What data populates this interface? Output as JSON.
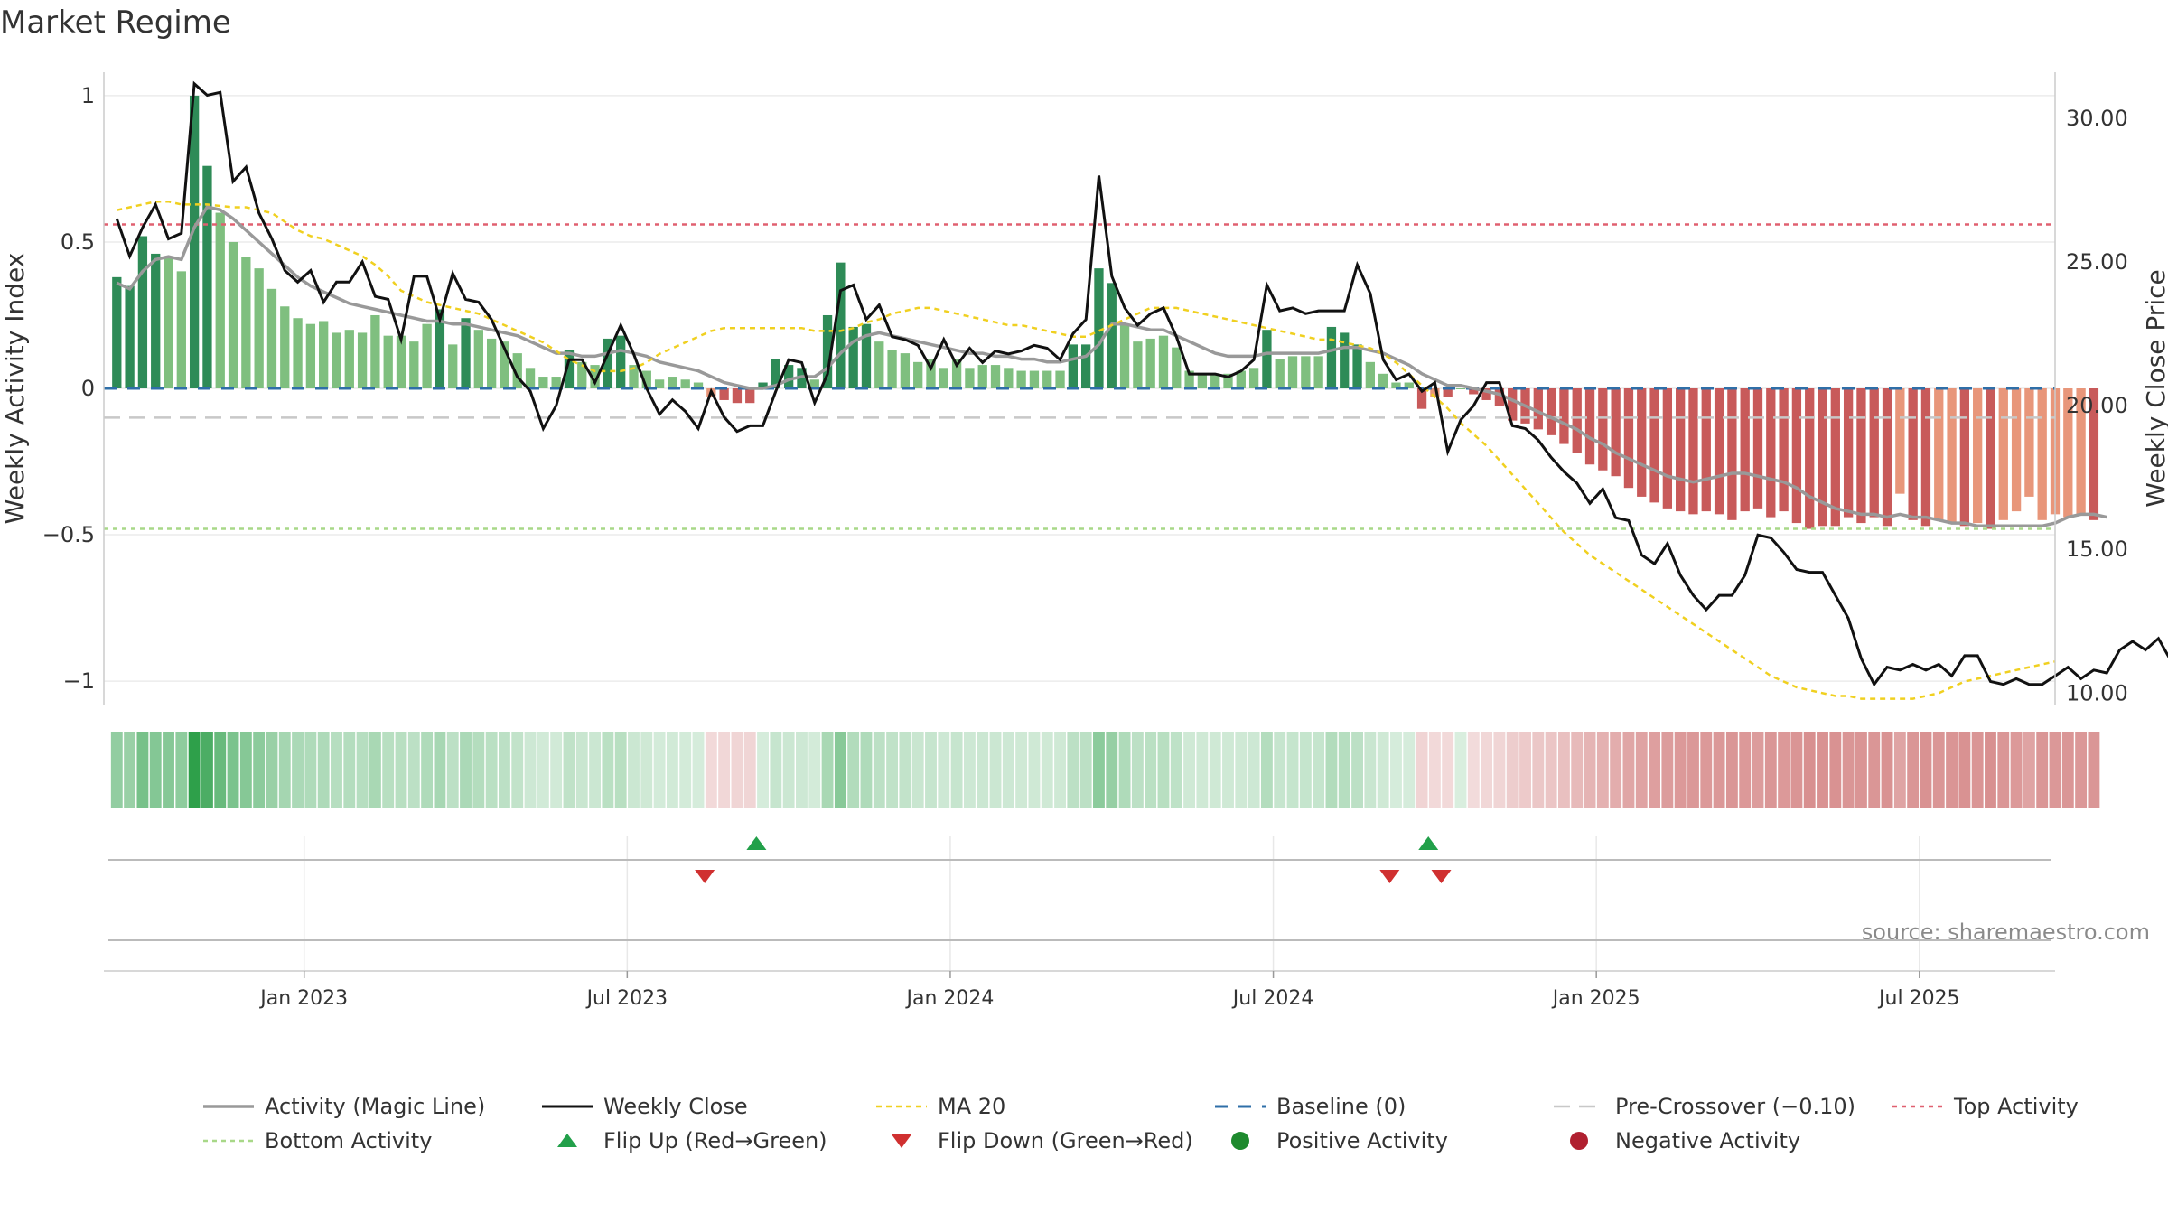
{
  "chart_data": {
    "type": "bar",
    "title": "Market Regime",
    "source": "source: sharemaestro.com",
    "ylabel_left": "Weekly Activity Index",
    "ylabel_right": "Weekly Close Price",
    "yticks_left": [
      {
        "value": 1,
        "label": "1"
      },
      {
        "value": 0.5,
        "label": "0.5"
      },
      {
        "value": 0,
        "label": "0"
      },
      {
        "value": -0.5,
        "label": "−0.5"
      },
      {
        "value": -1,
        "label": "−1"
      }
    ],
    "yticks_right": [
      {
        "value": 30,
        "label": "30.00"
      },
      {
        "value": 25,
        "label": "25.00"
      },
      {
        "value": 20,
        "label": "20.00"
      },
      {
        "value": 15,
        "label": "15.00"
      },
      {
        "value": 10,
        "label": "10.00"
      }
    ],
    "ylim_left": [
      -1.08,
      1.08
    ],
    "ylim_right": [
      9.6,
      31.6
    ],
    "xlim_weeks": [
      -1,
      150
    ],
    "xticks": [
      {
        "week": 14.5,
        "label": "Jan 2023"
      },
      {
        "week": 39.5,
        "label": "Jul 2023"
      },
      {
        "week": 64.5,
        "label": "Jan 2024"
      },
      {
        "week": 89.5,
        "label": "Jul 2024"
      },
      {
        "week": 114.5,
        "label": "Jan 2025"
      },
      {
        "week": 139.5,
        "label": "Jul 2025"
      }
    ],
    "reference_lines": {
      "baseline": 0,
      "pre_crossover": -0.1,
      "top_activity": 0.56,
      "bottom_activity": -0.48
    },
    "activity": [
      0.38,
      0.35,
      0.52,
      0.46,
      0.45,
      0.4,
      1.0,
      0.76,
      0.6,
      0.5,
      0.45,
      0.41,
      0.34,
      0.28,
      0.24,
      0.22,
      0.23,
      0.19,
      0.2,
      0.19,
      0.25,
      0.18,
      0.18,
      0.16,
      0.22,
      0.27,
      0.15,
      0.24,
      0.2,
      0.17,
      0.16,
      0.12,
      0.07,
      0.04,
      0.04,
      0.13,
      0.09,
      0.08,
      0.17,
      0.18,
      0.08,
      0.06,
      0.03,
      0.04,
      0.03,
      0.02,
      -0.03,
      -0.04,
      -0.05,
      -0.05,
      0.02,
      0.1,
      0.08,
      0.07,
      0.03,
      0.25,
      0.43,
      0.21,
      0.22,
      0.16,
      0.13,
      0.12,
      0.09,
      0.1,
      0.07,
      0.1,
      0.07,
      0.08,
      0.08,
      0.07,
      0.06,
      0.06,
      0.06,
      0.06,
      0.15,
      0.15,
      0.41,
      0.36,
      0.22,
      0.16,
      0.17,
      0.18,
      0.14,
      0.06,
      0.05,
      0.05,
      0.05,
      0.06,
      0.07,
      0.2,
      0.1,
      0.11,
      0.11,
      0.11,
      0.21,
      0.19,
      0.15,
      0.09,
      0.05,
      0.02,
      0.02,
      -0.07,
      -0.03,
      -0.03,
      0.0,
      -0.02,
      -0.04,
      -0.06,
      -0.11,
      -0.12,
      -0.14,
      -0.16,
      -0.19,
      -0.22,
      -0.26,
      -0.28,
      -0.3,
      -0.34,
      -0.37,
      -0.39,
      -0.41,
      -0.42,
      -0.43,
      -0.42,
      -0.43,
      -0.45,
      -0.42,
      -0.41,
      -0.44,
      -0.42,
      -0.46,
      -0.48,
      -0.47,
      -0.47,
      -0.44,
      -0.46,
      -0.44,
      -0.47,
      -0.36,
      -0.45,
      -0.47,
      -0.45,
      -0.46,
      -0.47,
      -0.46,
      -0.48,
      -0.45,
      -0.42,
      -0.37,
      -0.45,
      -0.43,
      -0.44,
      -0.43,
      -0.45
    ],
    "magic_line": [
      0.36,
      0.34,
      0.4,
      0.44,
      0.45,
      0.44,
      0.55,
      0.62,
      0.61,
      0.58,
      0.54,
      0.5,
      0.46,
      0.42,
      0.38,
      0.35,
      0.33,
      0.31,
      0.29,
      0.28,
      0.27,
      0.26,
      0.25,
      0.24,
      0.23,
      0.23,
      0.22,
      0.22,
      0.21,
      0.2,
      0.19,
      0.18,
      0.16,
      0.14,
      0.12,
      0.12,
      0.11,
      0.11,
      0.12,
      0.13,
      0.12,
      0.11,
      0.09,
      0.08,
      0.07,
      0.06,
      0.04,
      0.02,
      0.01,
      0.0,
      0.0,
      0.01,
      0.03,
      0.04,
      0.04,
      0.07,
      0.12,
      0.16,
      0.18,
      0.19,
      0.18,
      0.17,
      0.16,
      0.15,
      0.14,
      0.13,
      0.12,
      0.12,
      0.11,
      0.11,
      0.1,
      0.1,
      0.09,
      0.09,
      0.1,
      0.11,
      0.15,
      0.22,
      0.22,
      0.21,
      0.2,
      0.2,
      0.18,
      0.16,
      0.14,
      0.12,
      0.11,
      0.11,
      0.11,
      0.12,
      0.12,
      0.12,
      0.12,
      0.12,
      0.13,
      0.14,
      0.14,
      0.13,
      0.12,
      0.1,
      0.08,
      0.05,
      0.03,
      0.01,
      0.01,
      0.0,
      -0.01,
      -0.02,
      -0.04,
      -0.06,
      -0.08,
      -0.1,
      -0.12,
      -0.14,
      -0.17,
      -0.19,
      -0.22,
      -0.24,
      -0.26,
      -0.28,
      -0.3,
      -0.31,
      -0.32,
      -0.31,
      -0.3,
      -0.29,
      -0.29,
      -0.3,
      -0.31,
      -0.32,
      -0.34,
      -0.37,
      -0.39,
      -0.41,
      -0.42,
      -0.43,
      -0.43,
      -0.44,
      -0.43,
      -0.44,
      -0.44,
      -0.45,
      -0.46,
      -0.46,
      -0.47,
      -0.47,
      -0.47,
      -0.47,
      -0.47,
      -0.47,
      -0.46,
      -0.44,
      -0.43,
      -0.43,
      -0.44
    ],
    "weekly_close": [
      26.5,
      25.2,
      26.2,
      27.0,
      25.8,
      26.0,
      31.2,
      30.8,
      30.9,
      27.8,
      28.3,
      26.7,
      25.8,
      24.7,
      24.3,
      24.7,
      23.6,
      24.3,
      24.3,
      25.0,
      23.8,
      23.7,
      22.3,
      24.5,
      24.5,
      23.0,
      24.6,
      23.7,
      23.6,
      23.0,
      22.0,
      21.0,
      20.5,
      19.2,
      20.0,
      21.6,
      21.6,
      20.8,
      21.8,
      22.8,
      21.8,
      20.6,
      19.7,
      20.2,
      19.8,
      19.2,
      20.5,
      19.6,
      19.1,
      19.3,
      19.3,
      20.5,
      21.6,
      21.5,
      20.1,
      21.1,
      24.0,
      24.2,
      23.0,
      23.5,
      22.4,
      22.3,
      22.1,
      21.3,
      22.3,
      21.4,
      22.0,
      21.5,
      21.9,
      21.8,
      21.9,
      22.1,
      22.0,
      21.6,
      22.5,
      23.0,
      28.0,
      24.5,
      23.4,
      22.8,
      23.2,
      23.4,
      22.4,
      21.1,
      21.1,
      21.1,
      21.0,
      21.2,
      21.6,
      24.2,
      23.3,
      23.4,
      23.2,
      23.3,
      23.3,
      23.3,
      24.9,
      23.9,
      21.6,
      20.9,
      21.1,
      20.5,
      20.8,
      18.4,
      19.5,
      20.0,
      20.8,
      20.8,
      19.3,
      19.2,
      18.8,
      18.2,
      17.7,
      17.3,
      16.6,
      17.1,
      16.1,
      16.0,
      14.8,
      14.5,
      15.2,
      14.1,
      13.4,
      12.9,
      13.4,
      13.4,
      14.1,
      15.5,
      15.4,
      14.9,
      14.3,
      14.2,
      14.2,
      13.4,
      12.6,
      11.2,
      10.3,
      10.9,
      10.8,
      11.0,
      10.8,
      11.0,
      10.6,
      11.3,
      11.3,
      10.4,
      10.3,
      10.5,
      10.3,
      10.3,
      10.6,
      10.9,
      10.5,
      10.8,
      10.7,
      11.5,
      11.8,
      11.5,
      11.9,
      11.1
    ],
    "ma20": [
      26.8,
      26.9,
      27.0,
      27.1,
      27.1,
      27.0,
      27.0,
      27.0,
      26.95,
      26.9,
      26.9,
      26.8,
      26.7,
      26.4,
      26.1,
      25.9,
      25.8,
      25.6,
      25.4,
      25.2,
      24.9,
      24.5,
      24.0,
      23.8,
      23.6,
      23.5,
      23.4,
      23.3,
      23.2,
      23.0,
      22.8,
      22.6,
      22.4,
      22.2,
      21.9,
      21.6,
      21.4,
      21.2,
      21.2,
      21.2,
      21.3,
      21.5,
      21.8,
      22.0,
      22.2,
      22.4,
      22.6,
      22.7,
      22.7,
      22.7,
      22.7,
      22.7,
      22.7,
      22.7,
      22.6,
      22.6,
      22.6,
      22.7,
      22.9,
      23.0,
      23.2,
      23.3,
      23.4,
      23.4,
      23.3,
      23.2,
      23.1,
      23.0,
      22.9,
      22.8,
      22.8,
      22.7,
      22.6,
      22.5,
      22.4,
      22.4,
      22.6,
      22.8,
      23.0,
      23.2,
      23.4,
      23.4,
      23.4,
      23.3,
      23.2,
      23.1,
      23.0,
      22.9,
      22.8,
      22.7,
      22.6,
      22.5,
      22.4,
      22.3,
      22.3,
      22.2,
      22.1,
      22.0,
      21.8,
      21.5,
      21.1,
      20.7,
      20.3,
      19.9,
      19.4,
      19.0,
      18.6,
      18.1,
      17.6,
      17.1,
      16.6,
      16.1,
      15.6,
      15.2,
      14.8,
      14.5,
      14.2,
      13.9,
      13.6,
      13.3,
      13.0,
      12.7,
      12.4,
      12.1,
      11.8,
      11.5,
      11.2,
      10.9,
      10.6,
      10.4,
      10.2,
      10.1,
      10.0,
      9.9,
      9.9,
      9.8,
      9.8,
      9.8,
      9.8,
      9.8,
      9.9,
      10.0,
      10.2,
      10.4,
      10.5,
      10.6,
      10.7,
      10.8,
      10.9,
      11.0,
      11.1
    ],
    "flips_up": [
      49.5,
      101.5
    ],
    "flips_down": [
      45.5,
      98.5,
      102.5
    ],
    "legend": [
      {
        "key": "magic",
        "label": "Activity (Magic Line)"
      },
      {
        "key": "close",
        "label": "Weekly Close"
      },
      {
        "key": "ma",
        "label": "MA 20"
      },
      {
        "key": "baseline",
        "label": "Baseline (0)"
      },
      {
        "key": "pre",
        "label": "Pre-Crossover (−0.10)"
      },
      {
        "key": "top",
        "label": "Top Activity"
      },
      {
        "key": "bottom",
        "label": "Bottom Activity"
      },
      {
        "key": "flipup",
        "label": "Flip Up (Red→Green)"
      },
      {
        "key": "flipdown",
        "label": "Flip Down (Green→Red)"
      },
      {
        "key": "pos",
        "label": "Positive Activity"
      },
      {
        "key": "neg",
        "label": "Negative Activity"
      }
    ],
    "colors": {
      "pos_dark": "#2e8b57",
      "pos_light": "#7fbf7f",
      "neg_dark": "#c85a5a",
      "neg_light": "#e8967a",
      "magic": "#999999",
      "close": "#111111",
      "ma": "#f0d020",
      "baseline": "#2f6fa8",
      "pre": "#c8c8c8",
      "top": "#e06070",
      "bottom": "#a8d888",
      "flipup": "#22a04a",
      "flipdown": "#d03030",
      "pos_dot": "#1e8a2e",
      "neg_dot": "#b02030"
    }
  }
}
